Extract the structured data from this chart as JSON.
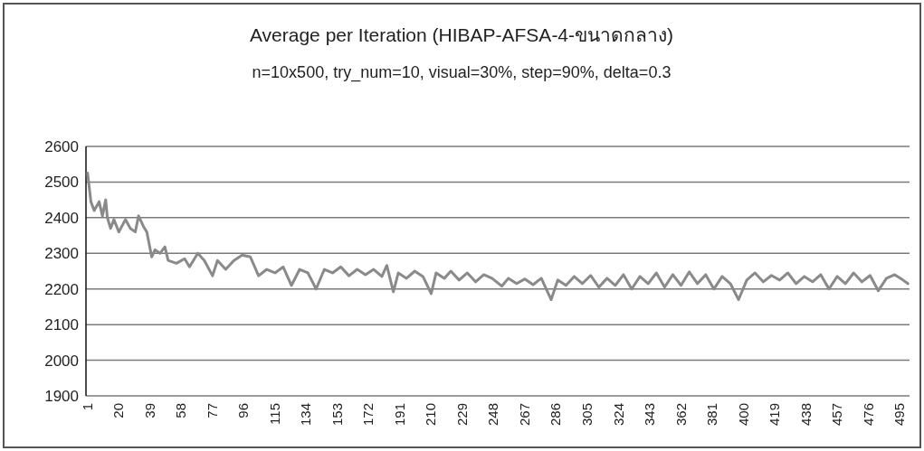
{
  "chart_data": {
    "type": "line",
    "title": "Average per Iteration (HIBAP-AFSA-4-ขนาดกลาง)",
    "subtitle": "n=10x500, try_num=10, visual=30%, step=90%, delta=0.3",
    "x": [
      1,
      3,
      5,
      8,
      10,
      12,
      13,
      15,
      17,
      20,
      24,
      27,
      30,
      32,
      35,
      37,
      40,
      42,
      45,
      48,
      50,
      55,
      60,
      63,
      68,
      72,
      77,
      80,
      85,
      90,
      95,
      100,
      105,
      110,
      115,
      120,
      125,
      130,
      135,
      140,
      145,
      150,
      155,
      160,
      165,
      170,
      175,
      180,
      183,
      187,
      190,
      195,
      200,
      205,
      210,
      213,
      218,
      222,
      227,
      232,
      237,
      242,
      247,
      253,
      257,
      262,
      267,
      272,
      277,
      283,
      287,
      292,
      297,
      302,
      307,
      312,
      317,
      322,
      327,
      332,
      337,
      342,
      347,
      352,
      357,
      362,
      367,
      372,
      377,
      382,
      387,
      392,
      397,
      402,
      407,
      412,
      417,
      422,
      427,
      432,
      437,
      442,
      447,
      452,
      457,
      462,
      467,
      472,
      477,
      482,
      487,
      492,
      497,
      500
    ],
    "series": [
      {
        "color": "#8a8a8a",
        "values": [
          2525,
          2445,
          2420,
          2445,
          2405,
          2450,
          2400,
          2370,
          2395,
          2360,
          2395,
          2370,
          2360,
          2405,
          2375,
          2360,
          2290,
          2310,
          2300,
          2318,
          2280,
          2272,
          2285,
          2262,
          2300,
          2280,
          2237,
          2280,
          2255,
          2280,
          2295,
          2290,
          2237,
          2255,
          2245,
          2262,
          2210,
          2255,
          2245,
          2200,
          2255,
          2245,
          2262,
          2237,
          2255,
          2240,
          2255,
          2235,
          2266,
          2192,
          2245,
          2230,
          2250,
          2235,
          2187,
          2245,
          2230,
          2250,
          2225,
          2245,
          2220,
          2240,
          2230,
          2208,
          2230,
          2215,
          2228,
          2212,
          2230,
          2170,
          2225,
          2210,
          2235,
          2215,
          2238,
          2205,
          2230,
          2210,
          2240,
          2200,
          2235,
          2215,
          2245,
          2205,
          2240,
          2210,
          2248,
          2215,
          2240,
          2200,
          2235,
          2215,
          2170,
          2225,
          2245,
          2220,
          2238,
          2225,
          2245,
          2215,
          2235,
          2220,
          2240,
          2200,
          2235,
          2215,
          2245,
          2220,
          2238,
          2195,
          2230,
          2240,
          2225,
          2215
        ]
      }
    ],
    "xlim": [
      0,
      501
    ],
    "xticks": [
      1,
      20,
      39,
      58,
      77,
      96,
      115,
      134,
      153,
      172,
      191,
      210,
      229,
      248,
      267,
      286,
      305,
      324,
      343,
      362,
      381,
      400,
      419,
      438,
      457,
      476,
      495
    ],
    "ylim": [
      1900,
      2600
    ],
    "yticks": [
      1900,
      2000,
      2100,
      2200,
      2300,
      2400,
      2500,
      2600
    ],
    "grid": "y"
  }
}
